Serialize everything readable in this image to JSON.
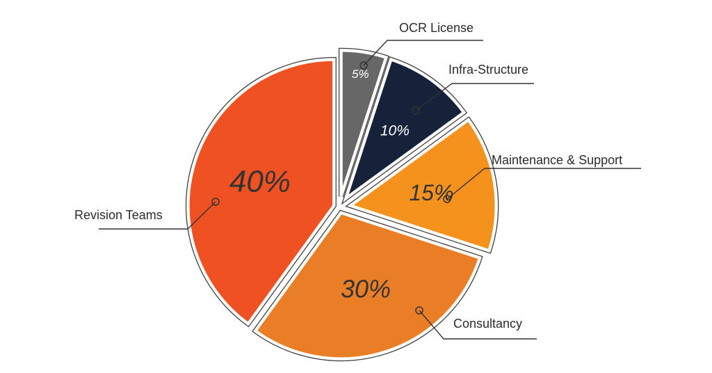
{
  "chart_data": {
    "type": "pie",
    "title": "",
    "categories": [
      "OCR License",
      "Infra-Structure",
      "Maintenance & Support",
      "Consultancy",
      "Revision Teams"
    ],
    "values": [
      5,
      10,
      15,
      30,
      40
    ],
    "value_labels": [
      "5%",
      "10%",
      "15%",
      "30%",
      "40%"
    ],
    "colors": [
      "#676767",
      "#16213a",
      "#f5921e",
      "#ea7e26",
      "#ef5123"
    ],
    "label_colors": [
      "#ffffff",
      "#ffffff",
      "#333333",
      "#333333",
      "#333333"
    ],
    "start_angle_deg": 0,
    "direction": "clockwise",
    "exploded": true,
    "legend": "none"
  }
}
